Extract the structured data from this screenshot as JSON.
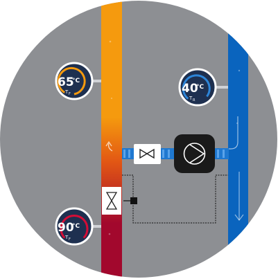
{
  "colors": {
    "background": "#8d8f93",
    "supply_hot": "#f59a0e",
    "supply_mid": "#e25714",
    "supply_cold": "#a2082d",
    "return": "#0a64be",
    "gauge_bg": "#1e3050",
    "gauge_ring": "#ffffff",
    "gauge_hot_arc": "#f59a0e",
    "gauge_very_hot_arc": "#d40d36",
    "gauge_cool_arc": "#2d85d8",
    "fitting_blue": "#1f78d0",
    "pump_body": "#1a1a1a"
  },
  "gauges": {
    "supply_top": {
      "value": "65",
      "unit": "°C",
      "symbol": "T",
      "subscript": "F",
      "icon": "thermometer-gauge-icon"
    },
    "return_top": {
      "value": "40",
      "unit": "°C",
      "symbol": "T",
      "subscript": "R",
      "icon": "thermometer-gauge-icon"
    },
    "supply_bottom": {
      "value": "90",
      "unit": "°C",
      "symbol": "T",
      "subscript": "F",
      "icon": "thermometer-gauge-icon"
    }
  },
  "components": {
    "mixing_valve": {
      "icon": "two-way-valve-icon"
    },
    "pump": {
      "icon": "circulation-pump-icon"
    },
    "control_valve": {
      "icon": "regulating-valve-icon"
    },
    "actuator": {
      "icon": "actuator-square-icon"
    }
  }
}
